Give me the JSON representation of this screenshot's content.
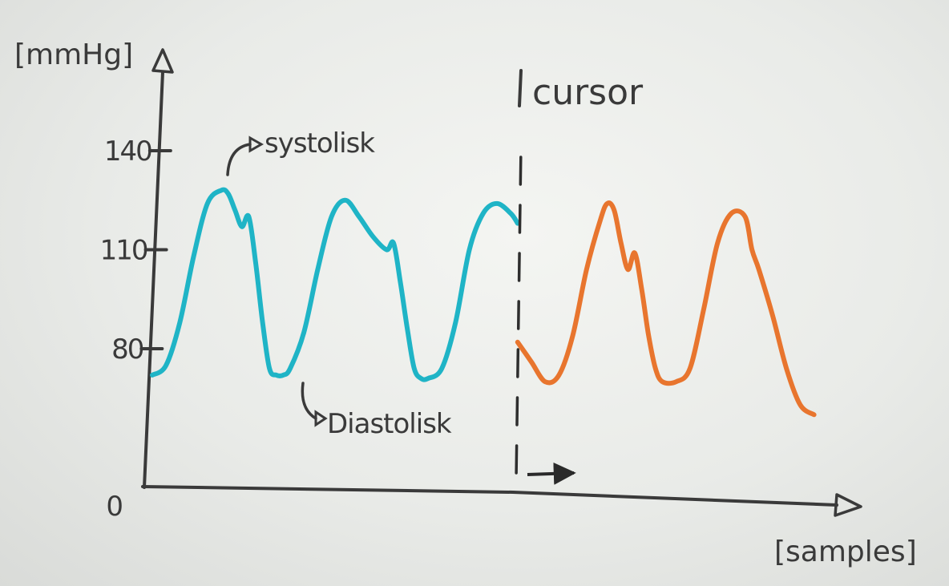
{
  "chart_data": {
    "type": "line",
    "ylabel": "[mmHg]",
    "xlabel": "[samples]",
    "yticks": [
      0,
      80,
      110,
      140
    ],
    "yticks_labels": [
      "0",
      "80",
      "110",
      "140"
    ],
    "ylim": [
      0,
      150
    ],
    "xlim": [
      0,
      100
    ],
    "grid": false,
    "series": [
      {
        "color": "#1fb4c6",
        "x": [
          0,
          2,
          4,
          6,
          8,
          10,
          11,
          12,
          13,
          14,
          15,
          16,
          17,
          18,
          19,
          20,
          22,
          24,
          26,
          28,
          30,
          32,
          34,
          35,
          36,
          37,
          38,
          39,
          40,
          42,
          44,
          46,
          48,
          50,
          52,
          53
        ],
        "y": [
          72,
          75,
          88,
          108,
          124,
          128,
          127,
          122,
          117,
          120,
          106,
          88,
          74,
          72,
          72,
          74,
          85,
          104,
          120,
          125,
          120,
          114,
          110,
          112,
          100,
          86,
          74,
          71,
          71,
          74,
          88,
          110,
          121,
          124,
          121,
          118
        ]
      },
      {
        "color": "#e8752e",
        "x": [
          53,
          55,
          57,
          59,
          61,
          63,
          65,
          66,
          67,
          68,
          69,
          70,
          71,
          72,
          73,
          74,
          76,
          78,
          80,
          82,
          84,
          86,
          87,
          88,
          90,
          92,
          94,
          96
        ],
        "y": [
          82,
          76,
          70,
          72,
          84,
          104,
          119,
          124,
          122,
          112,
          104,
          109,
          98,
          84,
          74,
          70,
          70,
          74,
          92,
          112,
          121,
          120,
          110,
          104,
          90,
          74,
          63,
          60
        ]
      }
    ],
    "cursor": {
      "x": 53,
      "label": "cursor"
    },
    "annotations": [
      {
        "text": "systolisk",
        "target_x": 10,
        "target_y": 128
      },
      {
        "text": "Diastolisk",
        "target_x": 18,
        "target_y": 72
      }
    ]
  }
}
